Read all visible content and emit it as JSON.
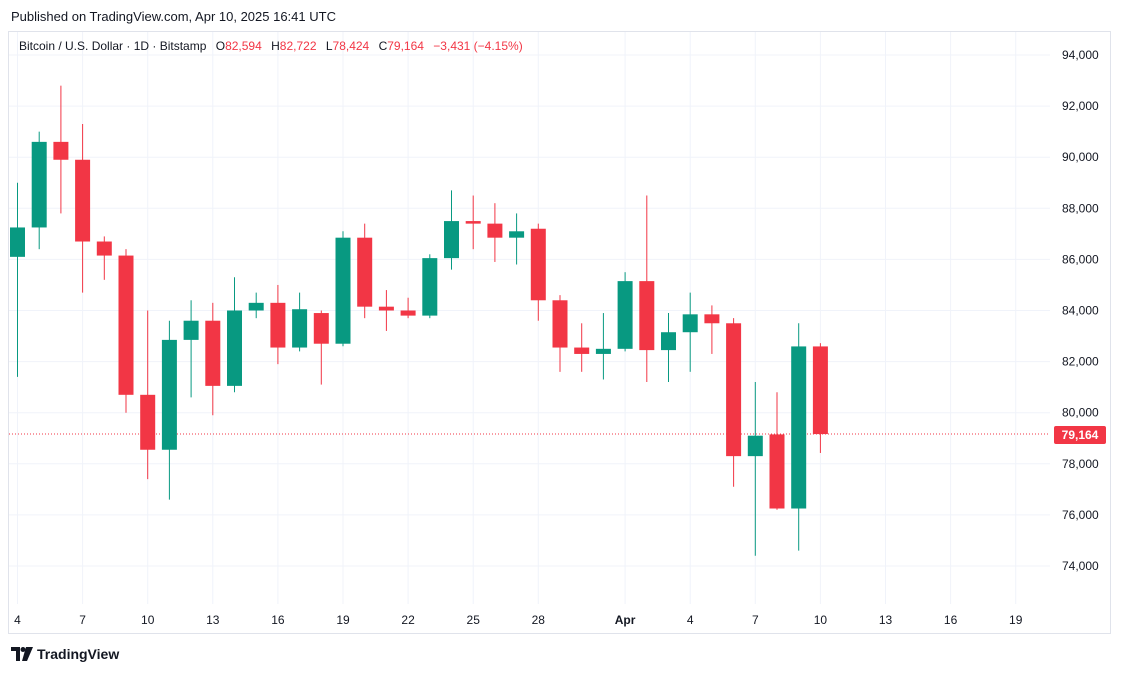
{
  "header": {
    "published": "Published on TradingView.com, Apr 10, 2025 16:41 UTC"
  },
  "legend": {
    "symbol": "Bitcoin / U.S. Dollar · 1D · Bitstamp",
    "open_label": "O",
    "open": "82,594",
    "high_label": "H",
    "high": "82,722",
    "low_label": "L",
    "low": "78,424",
    "close_label": "C",
    "close": "79,164",
    "change": "−3,431 (−4.15%)"
  },
  "last_price_tag": "79,164",
  "brand": {
    "name": "TradingView"
  },
  "colors": {
    "up": "#089981",
    "down": "#f23645",
    "grid": "#f0f3fa"
  },
  "chart_data": {
    "type": "candlestick",
    "y_ticks": [
      "94,000",
      "92,000",
      "90,000",
      "88,000",
      "86,000",
      "84,000",
      "82,000",
      "80,000",
      "78,000",
      "76,000",
      "74,000"
    ],
    "y_tick_values": [
      94000,
      92000,
      90000,
      88000,
      86000,
      84000,
      82000,
      80000,
      78000,
      76000,
      74000
    ],
    "x_ticks": [
      {
        "label": "4",
        "day": 0
      },
      {
        "label": "7",
        "day": 3
      },
      {
        "label": "10",
        "day": 6
      },
      {
        "label": "13",
        "day": 9
      },
      {
        "label": "16",
        "day": 12
      },
      {
        "label": "19",
        "day": 15
      },
      {
        "label": "22",
        "day": 18
      },
      {
        "label": "25",
        "day": 21
      },
      {
        "label": "28",
        "day": 24
      },
      {
        "label": "Apr",
        "day": 28
      },
      {
        "label": "4",
        "day": 31
      },
      {
        "label": "7",
        "day": 34
      },
      {
        "label": "10",
        "day": 37
      },
      {
        "label": "13",
        "day": 40
      },
      {
        "label": "16",
        "day": 43
      },
      {
        "label": "19",
        "day": 46
      }
    ],
    "ylim": [
      72800,
      95000
    ],
    "last_close": 79164,
    "candles": [
      {
        "date": "2025-03-04",
        "o": 86100,
        "h": 89000,
        "l": 81400,
        "c": 87250
      },
      {
        "date": "2025-03-05",
        "o": 87250,
        "h": 91000,
        "l": 86400,
        "c": 90600
      },
      {
        "date": "2025-03-06",
        "o": 90600,
        "h": 92800,
        "l": 87800,
        "c": 89900
      },
      {
        "date": "2025-03-07",
        "o": 89900,
        "h": 91300,
        "l": 84700,
        "c": 86700
      },
      {
        "date": "2025-03-08",
        "o": 86700,
        "h": 86900,
        "l": 85200,
        "c": 86150
      },
      {
        "date": "2025-03-09",
        "o": 86150,
        "h": 86400,
        "l": 80000,
        "c": 80700
      },
      {
        "date": "2025-03-10",
        "o": 80700,
        "h": 84000,
        "l": 77400,
        "c": 78550
      },
      {
        "date": "2025-03-11",
        "o": 78550,
        "h": 83600,
        "l": 76600,
        "c": 82850
      },
      {
        "date": "2025-03-12",
        "o": 82850,
        "h": 84400,
        "l": 80600,
        "c": 83600
      },
      {
        "date": "2025-03-13",
        "o": 83600,
        "h": 84300,
        "l": 79900,
        "c": 81050
      },
      {
        "date": "2025-03-14",
        "o": 81050,
        "h": 85300,
        "l": 80800,
        "c": 84000
      },
      {
        "date": "2025-03-15",
        "o": 84000,
        "h": 84700,
        "l": 83700,
        "c": 84300
      },
      {
        "date": "2025-03-16",
        "o": 84300,
        "h": 85000,
        "l": 81900,
        "c": 82550
      },
      {
        "date": "2025-03-17",
        "o": 82550,
        "h": 84700,
        "l": 82400,
        "c": 84050
      },
      {
        "date": "2025-03-18",
        "o": 83900,
        "h": 84000,
        "l": 81100,
        "c": 82700
      },
      {
        "date": "2025-03-19",
        "o": 82700,
        "h": 87100,
        "l": 82600,
        "c": 86850
      },
      {
        "date": "2025-03-20",
        "o": 86850,
        "h": 87400,
        "l": 83700,
        "c": 84150
      },
      {
        "date": "2025-03-21",
        "o": 84150,
        "h": 84800,
        "l": 83200,
        "c": 84000
      },
      {
        "date": "2025-03-22",
        "o": 84000,
        "h": 84500,
        "l": 83700,
        "c": 83800
      },
      {
        "date": "2025-03-23",
        "o": 83800,
        "h": 86200,
        "l": 83700,
        "c": 86050
      },
      {
        "date": "2025-03-24",
        "o": 86050,
        "h": 88700,
        "l": 85600,
        "c": 87500
      },
      {
        "date": "2025-03-25",
        "o": 87500,
        "h": 88500,
        "l": 86400,
        "c": 87400
      },
      {
        "date": "2025-03-26",
        "o": 87400,
        "h": 88200,
        "l": 85900,
        "c": 86850
      },
      {
        "date": "2025-03-27",
        "o": 86850,
        "h": 87800,
        "l": 85800,
        "c": 87100
      },
      {
        "date": "2025-03-28",
        "o": 87200,
        "h": 87400,
        "l": 83600,
        "c": 84400
      },
      {
        "date": "2025-03-29",
        "o": 84400,
        "h": 84600,
        "l": 81600,
        "c": 82550
      },
      {
        "date": "2025-03-30",
        "o": 82550,
        "h": 83500,
        "l": 81600,
        "c": 82300
      },
      {
        "date": "2025-03-31",
        "o": 82300,
        "h": 83900,
        "l": 81300,
        "c": 82500
      },
      {
        "date": "2025-04-01",
        "o": 82500,
        "h": 85500,
        "l": 82400,
        "c": 85150
      },
      {
        "date": "2025-04-02",
        "o": 85150,
        "h": 88500,
        "l": 81200,
        "c": 82450
      },
      {
        "date": "2025-04-03",
        "o": 82450,
        "h": 83900,
        "l": 81200,
        "c": 83150
      },
      {
        "date": "2025-04-04",
        "o": 83150,
        "h": 84700,
        "l": 81600,
        "c": 83850
      },
      {
        "date": "2025-04-05",
        "o": 83850,
        "h": 84200,
        "l": 82300,
        "c": 83500
      },
      {
        "date": "2025-04-06",
        "o": 83500,
        "h": 83700,
        "l": 77100,
        "c": 78300
      },
      {
        "date": "2025-04-07",
        "o": 78300,
        "h": 81200,
        "l": 74400,
        "c": 79100
      },
      {
        "date": "2025-04-08",
        "o": 79150,
        "h": 80800,
        "l": 76200,
        "c": 76250
      },
      {
        "date": "2025-04-09",
        "o": 76250,
        "h": 83500,
        "l": 74600,
        "c": 82594
      },
      {
        "date": "2025-04-10",
        "o": 82594,
        "h": 82722,
        "l": 78424,
        "c": 79164
      }
    ]
  }
}
